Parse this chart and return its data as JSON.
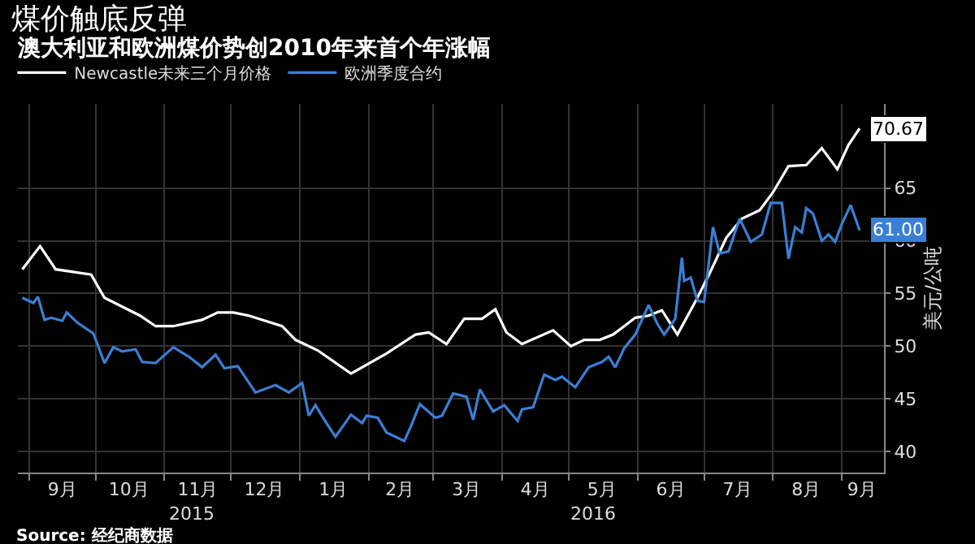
{
  "chart_data": {
    "type": "line",
    "title": "煤价触底反弹",
    "subtitle": "澳大利亚和欧洲煤价势创2010年来首个年涨幅",
    "ylabel": "美元/公吨",
    "series": [
      {
        "name": "Newcastle未来三个月价格",
        "color": "#ffffff",
        "x": [
          "2015-08-29",
          "2015-09-06",
          "2015-09-13",
          "2015-09-29",
          "2015-10-05",
          "2015-10-21",
          "2015-10-28",
          "2015-11-05",
          "2015-11-18",
          "2015-11-25",
          "2015-12-02",
          "2015-12-09",
          "2015-12-24",
          "2015-12-30",
          "2016-01-09",
          "2016-01-24",
          "2016-02-09",
          "2016-02-22",
          "2016-02-28",
          "2016-03-07",
          "2016-03-15",
          "2016-03-23",
          "2016-03-29",
          "2016-04-03",
          "2016-04-10",
          "2016-04-24",
          "2016-05-02",
          "2016-05-08",
          "2016-05-15",
          "2016-05-21",
          "2016-05-31",
          "2016-06-06",
          "2016-06-12",
          "2016-06-19",
          "2016-06-27",
          "2016-07-03",
          "2016-07-11",
          "2016-07-18",
          "2016-07-26",
          "2016-08-01",
          "2016-08-08",
          "2016-08-16",
          "2016-08-23",
          "2016-08-30",
          "2016-09-04",
          "2016-09-09"
        ],
        "values": [
          57.3,
          59.5,
          57.3,
          56.8,
          54.6,
          52.9,
          51.9,
          51.9,
          52.5,
          53.2,
          53.2,
          52.9,
          51.9,
          50.6,
          49.6,
          47.4,
          49.3,
          51.1,
          51.3,
          50.2,
          52.6,
          52.6,
          53.5,
          51.3,
          50.2,
          51.5,
          50.0,
          50.6,
          50.6,
          51.1,
          52.7,
          52.9,
          53.4,
          51.1,
          54.2,
          56.7,
          60.3,
          62.1,
          62.9,
          64.6,
          67.1,
          67.2,
          68.8,
          66.8,
          69.1,
          70.67
        ]
      },
      {
        "name": "欧洲季度合约",
        "color": "#3a7fd5",
        "x": [
          "2015-08-29",
          "2015-09-03",
          "2015-09-05",
          "2015-09-08",
          "2015-09-11",
          "2015-09-16",
          "2015-09-18",
          "2015-09-23",
          "2015-09-30",
          "2015-10-05",
          "2015-10-09",
          "2015-10-13",
          "2015-10-19",
          "2015-10-22",
          "2015-10-28",
          "2015-11-05",
          "2015-11-12",
          "2015-11-18",
          "2015-11-24",
          "2015-11-28",
          "2015-12-04",
          "2015-12-12",
          "2015-12-21",
          "2015-12-27",
          "2016-01-02",
          "2016-01-05",
          "2016-01-08",
          "2016-01-12",
          "2016-01-17",
          "2016-01-24",
          "2016-01-29",
          "2016-01-31",
          "2016-02-05",
          "2016-02-09",
          "2016-02-17",
          "2016-02-20",
          "2016-02-24",
          "2016-03-02",
          "2016-03-05",
          "2016-03-10",
          "2016-03-16",
          "2016-03-19",
          "2016-03-22",
          "2016-03-28",
          "2016-04-02",
          "2016-04-08",
          "2016-04-10",
          "2016-04-15",
          "2016-04-20",
          "2016-04-25",
          "2016-04-28",
          "2016-05-04",
          "2016-05-10",
          "2016-05-16",
          "2016-05-19",
          "2016-05-22",
          "2016-05-26",
          "2016-05-31",
          "2016-06-06",
          "2016-06-10",
          "2016-06-13",
          "2016-06-18",
          "2016-06-21",
          "2016-06-22",
          "2016-06-25",
          "2016-06-28",
          "2016-07-01",
          "2016-07-05",
          "2016-07-08",
          "2016-07-12",
          "2016-07-17",
          "2016-07-22",
          "2016-07-27",
          "2016-07-31",
          "2016-08-05",
          "2016-08-08",
          "2016-08-11",
          "2016-08-14",
          "2016-08-16",
          "2016-08-19",
          "2016-08-23",
          "2016-08-26",
          "2016-08-29",
          "2016-09-01",
          "2016-09-05",
          "2016-09-09"
        ],
        "values": [
          54.6,
          54.1,
          54.7,
          52.5,
          52.7,
          52.4,
          53.2,
          52.2,
          51.2,
          48.4,
          49.9,
          49.5,
          49.7,
          48.5,
          48.4,
          49.9,
          49.0,
          48.0,
          49.2,
          47.9,
          48.1,
          45.6,
          46.3,
          45.6,
          46.5,
          43.4,
          44.4,
          43.0,
          41.4,
          43.5,
          42.7,
          43.4,
          43.2,
          41.8,
          41.0,
          42.4,
          44.5,
          43.2,
          43.4,
          45.5,
          45.2,
          43.0,
          45.9,
          43.8,
          44.4,
          42.9,
          44.0,
          44.2,
          47.3,
          46.8,
          47.1,
          46.1,
          48.0,
          48.5,
          49.0,
          48.0,
          49.8,
          51.1,
          53.9,
          52.1,
          51.1,
          52.6,
          58.4,
          56.2,
          56.5,
          54.3,
          54.2,
          61.3,
          58.8,
          59.0,
          62.1,
          59.9,
          60.6,
          63.6,
          63.6,
          58.3,
          61.3,
          60.8,
          63.1,
          62.6,
          60.0,
          60.6,
          59.9,
          61.6,
          63.4,
          61.0
        ]
      }
    ],
    "xlim": [
      "2015-08-27",
      "2016-09-20"
    ],
    "xticks": [
      {
        "value": "2015-09-01",
        "label": null
      },
      {
        "value": "2015-10-01",
        "label": null
      },
      {
        "value": "2015-11-01",
        "label": null
      },
      {
        "value": "2015-12-01",
        "label": null
      },
      {
        "value": "2016-01-01",
        "label": null
      },
      {
        "value": "2016-02-01",
        "label": null
      },
      {
        "value": "2016-03-01",
        "label": null
      },
      {
        "value": "2016-04-01",
        "label": null
      },
      {
        "value": "2016-05-01",
        "label": null
      },
      {
        "value": "2016-06-01",
        "label": null
      },
      {
        "value": "2016-07-01",
        "label": null
      },
      {
        "value": "2016-08-01",
        "label": null
      },
      {
        "value": "2016-09-01",
        "label": null
      },
      {
        "value": "2015-09-16",
        "label": "9月"
      },
      {
        "value": "2015-10-16",
        "label": "10月"
      },
      {
        "value": "2015-11-16",
        "label": "11月"
      },
      {
        "value": "2015-12-16",
        "label": "12月"
      },
      {
        "value": "2016-01-16",
        "label": "1月"
      },
      {
        "value": "2016-02-15",
        "label": "2月"
      },
      {
        "value": "2016-03-16",
        "label": "3月"
      },
      {
        "value": "2016-04-16",
        "label": "4月"
      },
      {
        "value": "2016-05-16",
        "label": "5月"
      },
      {
        "value": "2016-06-16",
        "label": "6月"
      },
      {
        "value": "2016-07-16",
        "label": "7月"
      },
      {
        "value": "2016-08-16",
        "label": "8月"
      },
      {
        "value": "2016-09-10",
        "label": "9月"
      }
    ],
    "ylim": [
      38,
      73
    ],
    "yticks": [
      40,
      45,
      50,
      55,
      60,
      65
    ],
    "grid": true,
    "legend": "top left",
    "annotations": [
      {
        "text": "70.67",
        "x": "2016-09-09",
        "y": 70.67
      },
      {
        "text": "61.00",
        "x": "2016-09-09",
        "y": 61.0
      },
      "2015",
      "2016",
      "Source: 经纪商数据"
    ]
  }
}
